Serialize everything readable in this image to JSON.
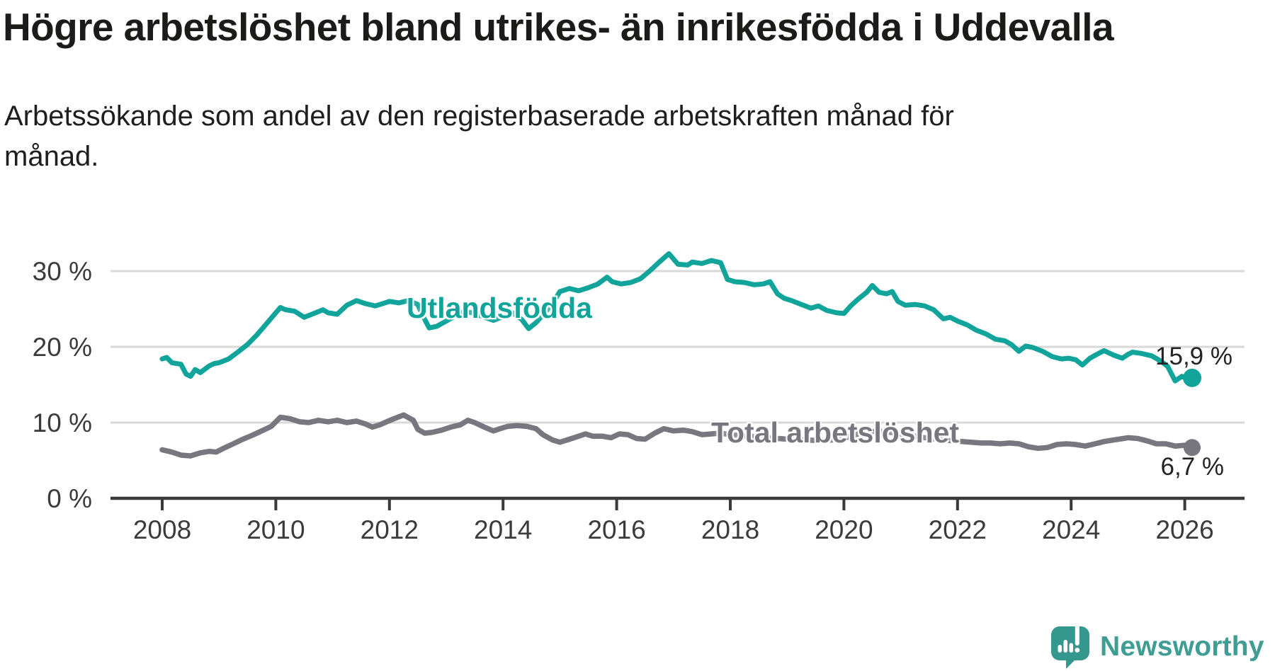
{
  "header": {
    "title": "Högre arbetslöshet bland utrikes- än inrikesfödda i Uddevalla",
    "subtitle": "Arbetssökande som andel av den registerbaserade arbetskraften månad för månad."
  },
  "chart_data": {
    "type": "line",
    "title": "Högre arbetslöshet bland utrikes- än inrikesfödda i Uddevalla",
    "subtitle": "Arbetssökande som andel av den registerbaserade arbetskraften månad för månad.",
    "unit": "percent of registered labour force",
    "grid": "horizontal",
    "legend_position": "inline-labels-on-chart",
    "x_axis": {
      "ticks": [
        2008,
        2010,
        2012,
        2014,
        2016,
        2018,
        2020,
        2022,
        2024,
        2026
      ],
      "range": [
        2007.1,
        2027.05
      ]
    },
    "y_axis": {
      "ticks": [
        {
          "value": 0,
          "label": "0 %"
        },
        {
          "value": 10,
          "label": "10 %"
        },
        {
          "value": 20,
          "label": "20 %"
        },
        {
          "value": 30,
          "label": "30 %"
        }
      ],
      "gridlines": [
        10,
        20,
        30
      ],
      "range": [
        0,
        33.5
      ]
    },
    "colors": {
      "grid": "#d9d9d9",
      "axis": "#3a3a3a",
      "tick_text": "#3b3b3b",
      "value_text": "#232323"
    },
    "series": [
      {
        "id": "utlandsfodda",
        "name": "Utlandsfödda",
        "color": "#10a49b",
        "end_label": "15,9 %",
        "end_value": 15.9,
        "points": [
          [
            2008.0,
            18.4
          ],
          [
            2008.08,
            18.6
          ],
          [
            2008.17,
            17.9
          ],
          [
            2008.33,
            17.7
          ],
          [
            2008.42,
            16.4
          ],
          [
            2008.5,
            16.1
          ],
          [
            2008.58,
            17.0
          ],
          [
            2008.67,
            16.6
          ],
          [
            2008.83,
            17.5
          ],
          [
            2008.92,
            17.8
          ],
          [
            2009.0,
            17.9
          ],
          [
            2009.17,
            18.4
          ],
          [
            2009.33,
            19.3
          ],
          [
            2009.5,
            20.3
          ],
          [
            2009.67,
            21.6
          ],
          [
            2009.83,
            23.0
          ],
          [
            2010.0,
            24.5
          ],
          [
            2010.08,
            25.2
          ],
          [
            2010.17,
            24.9
          ],
          [
            2010.33,
            24.7
          ],
          [
            2010.5,
            23.9
          ],
          [
            2010.67,
            24.4
          ],
          [
            2010.83,
            24.9
          ],
          [
            2010.92,
            24.5
          ],
          [
            2011.08,
            24.3
          ],
          [
            2011.25,
            25.5
          ],
          [
            2011.42,
            26.1
          ],
          [
            2011.58,
            25.7
          ],
          [
            2011.75,
            25.4
          ],
          [
            2011.92,
            25.8
          ],
          [
            2012.0,
            26.0
          ],
          [
            2012.17,
            25.8
          ],
          [
            2012.33,
            26.1
          ],
          [
            2012.5,
            25.6
          ],
          [
            2012.58,
            24.2
          ],
          [
            2012.7,
            22.5
          ],
          [
            2012.83,
            22.7
          ],
          [
            2013.0,
            23.4
          ],
          [
            2013.17,
            24.1
          ],
          [
            2013.33,
            24.7
          ],
          [
            2013.5,
            24.4
          ],
          [
            2013.67,
            23.9
          ],
          [
            2013.83,
            23.5
          ],
          [
            2014.0,
            24.0
          ],
          [
            2014.17,
            24.5
          ],
          [
            2014.33,
            23.6
          ],
          [
            2014.45,
            22.4
          ],
          [
            2014.58,
            23.2
          ],
          [
            2014.75,
            24.6
          ],
          [
            2014.92,
            26.3
          ],
          [
            2015.0,
            27.3
          ],
          [
            2015.17,
            27.7
          ],
          [
            2015.33,
            27.4
          ],
          [
            2015.5,
            27.8
          ],
          [
            2015.67,
            28.3
          ],
          [
            2015.83,
            29.2
          ],
          [
            2015.92,
            28.6
          ],
          [
            2016.08,
            28.3
          ],
          [
            2016.25,
            28.5
          ],
          [
            2016.42,
            29.0
          ],
          [
            2016.58,
            30.0
          ],
          [
            2016.75,
            31.2
          ],
          [
            2016.92,
            32.3
          ],
          [
            2017.0,
            31.6
          ],
          [
            2017.08,
            30.9
          ],
          [
            2017.25,
            30.8
          ],
          [
            2017.33,
            31.2
          ],
          [
            2017.5,
            31.0
          ],
          [
            2017.67,
            31.4
          ],
          [
            2017.83,
            31.1
          ],
          [
            2017.95,
            28.9
          ],
          [
            2018.08,
            28.6
          ],
          [
            2018.25,
            28.5
          ],
          [
            2018.42,
            28.2
          ],
          [
            2018.58,
            28.3
          ],
          [
            2018.7,
            28.6
          ],
          [
            2018.83,
            27.0
          ],
          [
            2018.95,
            26.4
          ],
          [
            2019.08,
            26.1
          ],
          [
            2019.25,
            25.6
          ],
          [
            2019.42,
            25.1
          ],
          [
            2019.55,
            25.4
          ],
          [
            2019.7,
            24.8
          ],
          [
            2019.87,
            24.5
          ],
          [
            2020.0,
            24.4
          ],
          [
            2020.12,
            25.4
          ],
          [
            2020.25,
            26.3
          ],
          [
            2020.4,
            27.2
          ],
          [
            2020.5,
            28.1
          ],
          [
            2020.62,
            27.2
          ],
          [
            2020.75,
            27.0
          ],
          [
            2020.85,
            27.3
          ],
          [
            2020.95,
            26.0
          ],
          [
            2021.08,
            25.5
          ],
          [
            2021.25,
            25.6
          ],
          [
            2021.42,
            25.4
          ],
          [
            2021.58,
            24.9
          ],
          [
            2021.75,
            23.7
          ],
          [
            2021.87,
            23.9
          ],
          [
            2022.0,
            23.4
          ],
          [
            2022.17,
            22.9
          ],
          [
            2022.33,
            22.2
          ],
          [
            2022.5,
            21.7
          ],
          [
            2022.67,
            21.0
          ],
          [
            2022.83,
            20.8
          ],
          [
            2022.95,
            20.3
          ],
          [
            2023.08,
            19.4
          ],
          [
            2023.2,
            20.1
          ],
          [
            2023.33,
            19.9
          ],
          [
            2023.5,
            19.4
          ],
          [
            2023.67,
            18.7
          ],
          [
            2023.83,
            18.4
          ],
          [
            2023.95,
            18.5
          ],
          [
            2024.08,
            18.3
          ],
          [
            2024.2,
            17.6
          ],
          [
            2024.33,
            18.5
          ],
          [
            2024.5,
            19.2
          ],
          [
            2024.58,
            19.5
          ],
          [
            2024.75,
            18.9
          ],
          [
            2024.9,
            18.5
          ],
          [
            2025.0,
            19.0
          ],
          [
            2025.08,
            19.3
          ],
          [
            2025.25,
            19.1
          ],
          [
            2025.42,
            18.8
          ],
          [
            2025.58,
            18.1
          ],
          [
            2025.7,
            17.4
          ],
          [
            2025.83,
            15.5
          ],
          [
            2025.95,
            16.1
          ],
          [
            2026.05,
            15.7
          ],
          [
            2026.13,
            15.9
          ]
        ]
      },
      {
        "id": "total",
        "name": "Total arbetslöshet",
        "color": "#78767e",
        "end_label": "6,7 %",
        "end_value": 6.7,
        "points": [
          [
            2008.0,
            6.4
          ],
          [
            2008.17,
            6.1
          ],
          [
            2008.33,
            5.7
          ],
          [
            2008.5,
            5.6
          ],
          [
            2008.67,
            6.0
          ],
          [
            2008.83,
            6.2
          ],
          [
            2008.95,
            6.1
          ],
          [
            2009.08,
            6.6
          ],
          [
            2009.25,
            7.2
          ],
          [
            2009.42,
            7.8
          ],
          [
            2009.58,
            8.3
          ],
          [
            2009.75,
            8.9
          ],
          [
            2009.92,
            9.5
          ],
          [
            2010.08,
            10.7
          ],
          [
            2010.25,
            10.5
          ],
          [
            2010.42,
            10.1
          ],
          [
            2010.58,
            10.0
          ],
          [
            2010.75,
            10.3
          ],
          [
            2010.92,
            10.1
          ],
          [
            2011.08,
            10.3
          ],
          [
            2011.25,
            10.0
          ],
          [
            2011.42,
            10.2
          ],
          [
            2011.58,
            9.8
          ],
          [
            2011.7,
            9.4
          ],
          [
            2011.83,
            9.7
          ],
          [
            2011.95,
            10.1
          ],
          [
            2012.08,
            10.5
          ],
          [
            2012.25,
            11.0
          ],
          [
            2012.42,
            10.3
          ],
          [
            2012.5,
            9.1
          ],
          [
            2012.62,
            8.6
          ],
          [
            2012.75,
            8.7
          ],
          [
            2012.92,
            9.0
          ],
          [
            2013.08,
            9.4
          ],
          [
            2013.25,
            9.7
          ],
          [
            2013.38,
            10.3
          ],
          [
            2013.5,
            10.0
          ],
          [
            2013.67,
            9.4
          ],
          [
            2013.83,
            8.9
          ],
          [
            2013.95,
            9.2
          ],
          [
            2014.08,
            9.5
          ],
          [
            2014.25,
            9.6
          ],
          [
            2014.42,
            9.5
          ],
          [
            2014.58,
            9.2
          ],
          [
            2014.7,
            8.4
          ],
          [
            2014.87,
            7.7
          ],
          [
            2015.0,
            7.4
          ],
          [
            2015.17,
            7.8
          ],
          [
            2015.33,
            8.2
          ],
          [
            2015.45,
            8.5
          ],
          [
            2015.58,
            8.2
          ],
          [
            2015.75,
            8.2
          ],
          [
            2015.9,
            8.0
          ],
          [
            2016.05,
            8.5
          ],
          [
            2016.2,
            8.4
          ],
          [
            2016.35,
            7.9
          ],
          [
            2016.5,
            7.8
          ],
          [
            2016.67,
            8.6
          ],
          [
            2016.83,
            9.2
          ],
          [
            2017.0,
            8.9
          ],
          [
            2017.17,
            9.0
          ],
          [
            2017.33,
            8.8
          ],
          [
            2017.5,
            8.4
          ],
          [
            2017.67,
            8.5
          ],
          [
            2017.83,
            8.6
          ],
          [
            2018.0,
            8.4
          ],
          [
            2018.33,
            8.2
          ],
          [
            2018.67,
            8.0
          ],
          [
            2019.0,
            7.8
          ],
          [
            2019.33,
            7.7
          ],
          [
            2019.67,
            7.6
          ],
          [
            2020.0,
            7.9
          ],
          [
            2020.33,
            8.7
          ],
          [
            2020.58,
            8.9
          ],
          [
            2020.83,
            8.7
          ],
          [
            2021.08,
            8.4
          ],
          [
            2021.42,
            8.0
          ],
          [
            2021.75,
            7.7
          ],
          [
            2022.08,
            7.5
          ],
          [
            2022.42,
            7.3
          ],
          [
            2022.58,
            7.3
          ],
          [
            2022.75,
            7.2
          ],
          [
            2022.92,
            7.3
          ],
          [
            2023.08,
            7.2
          ],
          [
            2023.25,
            6.8
          ],
          [
            2023.42,
            6.6
          ],
          [
            2023.58,
            6.7
          ],
          [
            2023.75,
            7.1
          ],
          [
            2023.92,
            7.2
          ],
          [
            2024.08,
            7.1
          ],
          [
            2024.25,
            6.9
          ],
          [
            2024.42,
            7.2
          ],
          [
            2024.58,
            7.5
          ],
          [
            2024.75,
            7.7
          ],
          [
            2024.92,
            7.9
          ],
          [
            2025.0,
            8.0
          ],
          [
            2025.17,
            7.9
          ],
          [
            2025.33,
            7.6
          ],
          [
            2025.5,
            7.2
          ],
          [
            2025.67,
            7.2
          ],
          [
            2025.83,
            6.9
          ],
          [
            2026.0,
            7.0
          ],
          [
            2026.13,
            6.7
          ]
        ]
      }
    ]
  },
  "footer": {
    "brand": "Newsworthy",
    "logo_icon": "newsworthy-speech-bubble-chart-icon",
    "brand_color": "#3f9d94"
  }
}
